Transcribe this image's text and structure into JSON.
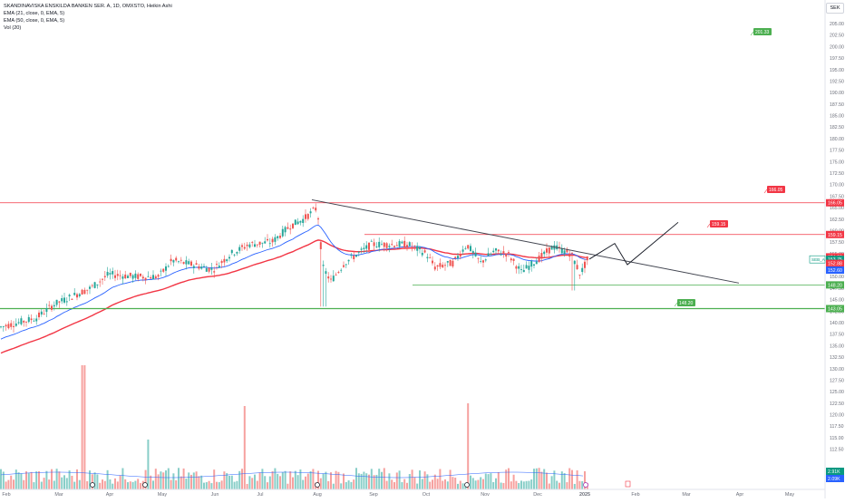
{
  "legend": {
    "title": "SKANDINAVISKA ENSKILDA BANKEN SER. A, 1D, OMXSTO, Heikin Ashi",
    "ema21": "EMA (21, close, 0, EMA, 5)",
    "ema50": "EMA (50, close, 0, EMA, 5)",
    "vol": "Vol (20)"
  },
  "currency": "SEK",
  "chart_data": {
    "type": "candlestick",
    "price_ticks": [
      "205.00",
      "202.50",
      "200.00",
      "197.50",
      "195.00",
      "192.50",
      "190.00",
      "187.50",
      "185.00",
      "182.50",
      "180.00",
      "177.50",
      "175.00",
      "172.50",
      "170.00",
      "167.50",
      "165.00",
      "162.50",
      "160.00",
      "157.50",
      "155.00",
      "150.00",
      "147.50",
      "145.00",
      "142.50",
      "140.00",
      "137.50",
      "135.00",
      "132.50",
      "130.00",
      "127.50",
      "125.00",
      "122.50",
      "120.00",
      "117.50",
      "115.00",
      "112.50"
    ],
    "time_ticks": [
      "Feb",
      "Mar",
      "Apr",
      "May",
      "Jun",
      "Jul",
      "Aug",
      "Sep",
      "Oct",
      "Nov",
      "Dec",
      "2025",
      "Feb",
      "Mar",
      "Apr",
      "May"
    ],
    "levels": [
      {
        "label": "166.05",
        "value": 166.05,
        "color": "#f23645"
      },
      {
        "label": "159.15",
        "value": 159.15,
        "color": "#f23645"
      },
      {
        "label": "148.20",
        "value": 148.2,
        "color": "#4caf50"
      },
      {
        "label": "143.05",
        "value": 143.05,
        "color": "#4caf50"
      }
    ],
    "price_labels": [
      {
        "text": "154.30",
        "value": 154.3,
        "color": "#f23645"
      },
      {
        "text": "153.75",
        "value": 153.75,
        "color": "#089981",
        "prefix": "SEB_A"
      },
      {
        "text": "152.88",
        "value": 152.88,
        "color": "#f23645"
      },
      {
        "text": "152.60",
        "value": 152.6,
        "color": "#2962ff"
      },
      {
        "text": "2.91K",
        "value": null,
        "color": "#089981"
      },
      {
        "text": "2.09K",
        "value": null,
        "color": "#2962ff"
      }
    ],
    "flags": [
      {
        "text": "166.05",
        "value": 166.05,
        "color": "#f23645"
      },
      {
        "text": "159.15",
        "value": 159.15,
        "color": "#f23645"
      },
      {
        "text": "148.20",
        "value": 148.2,
        "color": "#4caf50"
      },
      {
        "text": "201.33",
        "value": 201.33,
        "color": "#4caf50"
      }
    ],
    "trendline": {
      "from_price": 166.7,
      "to_price": 149.0
    },
    "projection": [
      153.8,
      157.2,
      152.6,
      161.8
    ],
    "price_range": [
      111,
      206
    ],
    "grid": false
  },
  "colors": {
    "up": "#26a69a",
    "down": "#ef5350",
    "ema21": "#2962ff",
    "ema50": "#f23645"
  }
}
